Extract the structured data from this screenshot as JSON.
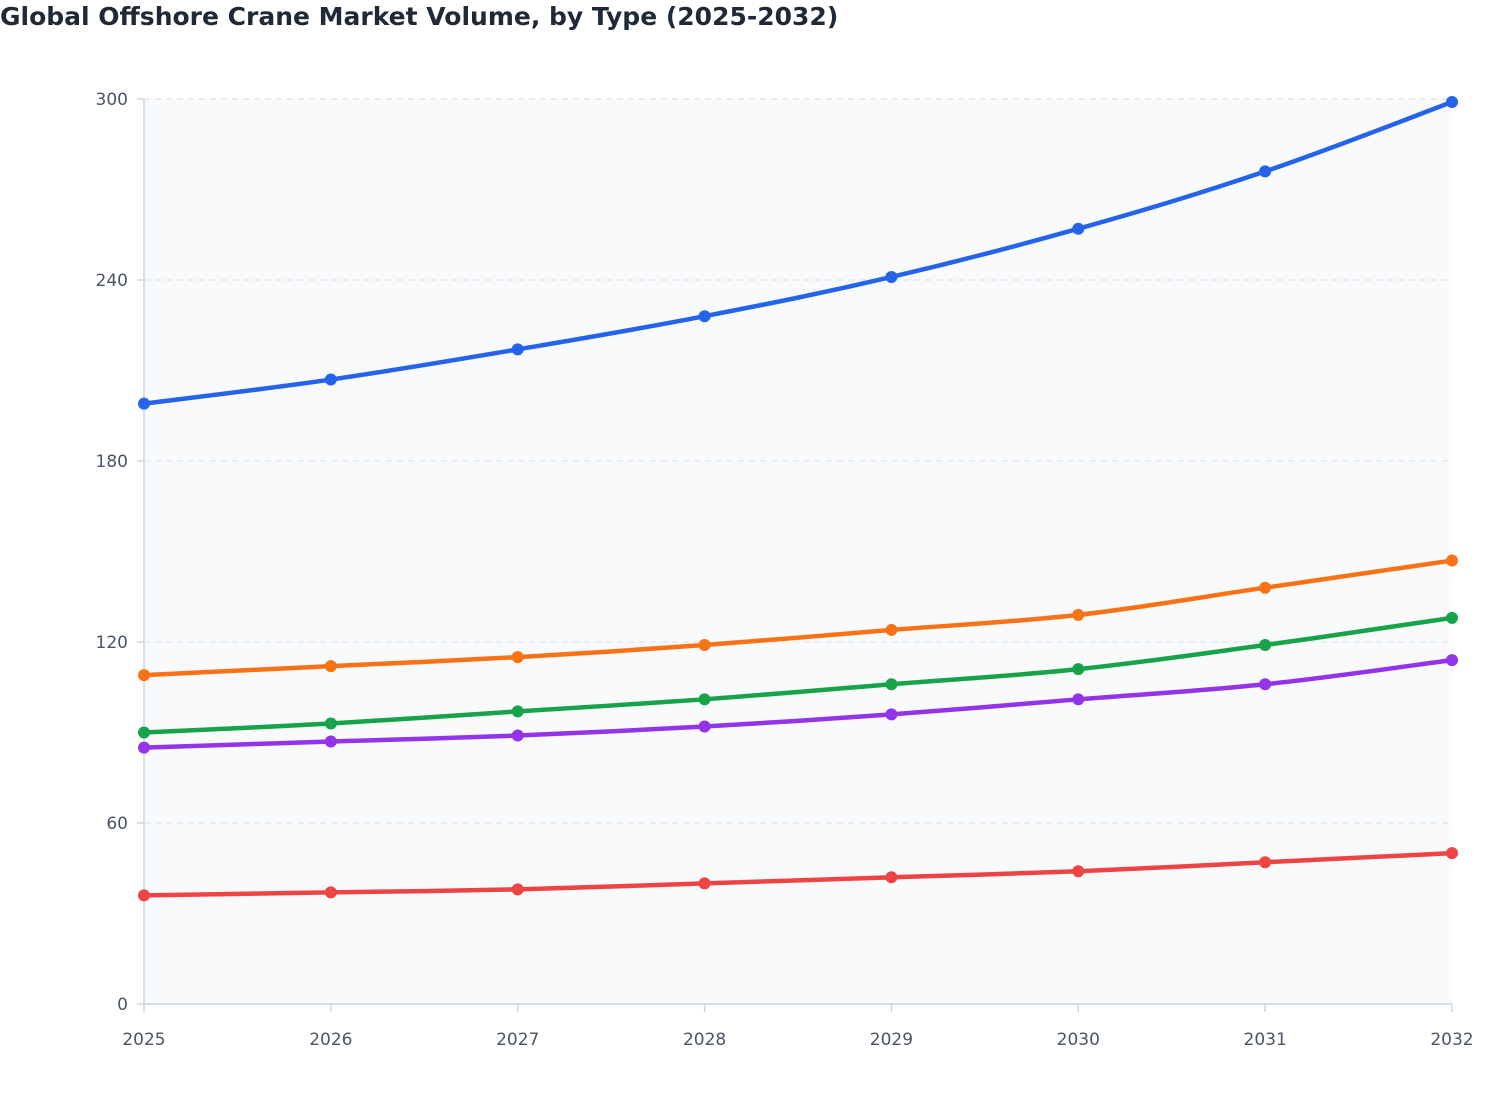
{
  "chart_data": {
    "type": "line",
    "title": "Global Offshore Crane Market Volume, by Type (2025-2032)",
    "xlabel": "",
    "ylabel": "",
    "categories": [
      "2025",
      "2026",
      "2027",
      "2028",
      "2029",
      "2030",
      "2031",
      "2032"
    ],
    "ylim": [
      0,
      300
    ],
    "yticks": [
      0,
      60,
      120,
      180,
      240,
      300
    ],
    "grid": true,
    "legend": "none",
    "series": [
      {
        "color": "#2563eb",
        "values": [
          199,
          207,
          217,
          228,
          241,
          257,
          276,
          299
        ]
      },
      {
        "color": "#f97316",
        "values": [
          109,
          112,
          115,
          119,
          124,
          129,
          138,
          147
        ]
      },
      {
        "color": "#16a34a",
        "values": [
          90,
          93,
          97,
          101,
          106,
          111,
          119,
          128
        ]
      },
      {
        "color": "#9333ea",
        "values": [
          85,
          87,
          89,
          92,
          96,
          101,
          106,
          114
        ]
      },
      {
        "color": "#ef4444",
        "values": [
          36,
          37,
          38,
          40,
          42,
          44,
          47,
          50
        ]
      }
    ]
  }
}
